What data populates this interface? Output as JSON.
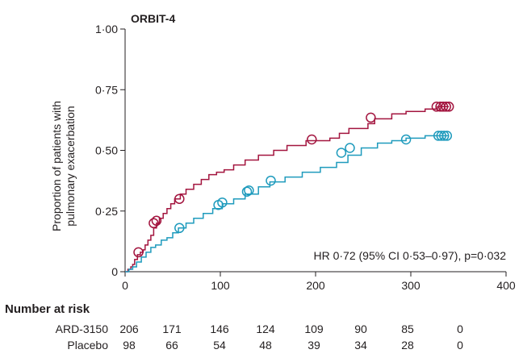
{
  "chart_data": {
    "type": "line",
    "subtype": "kaplan-meier",
    "title": "ORBIT-4",
    "ylabel_lines": [
      "Proportion of patients with",
      "pulmonary exacerbation"
    ],
    "xlabel": "",
    "xlim": [
      0,
      400
    ],
    "ylim": [
      0,
      1
    ],
    "x_ticks": [
      0,
      100,
      200,
      300,
      400
    ],
    "x_tick_labels": [
      "0",
      "100",
      "200",
      "300",
      "400"
    ],
    "y_ticks": [
      0,
      0.25,
      0.5,
      0.75,
      1.0
    ],
    "y_tick_labels": [
      "0",
      "0·25",
      "0·50",
      "0·75",
      "1·00"
    ],
    "grid": false,
    "annotation": "HR 0·72 (95% CI 0·53–0·97), p=0·032",
    "series": [
      {
        "name": "Placebo",
        "color": "#a3153f",
        "steps": [
          [
            0,
            0
          ],
          [
            3,
            0.01
          ],
          [
            6,
            0.02
          ],
          [
            8,
            0.03
          ],
          [
            10,
            0.05
          ],
          [
            13,
            0.07
          ],
          [
            16,
            0.08
          ],
          [
            19,
            0.09
          ],
          [
            21,
            0.11
          ],
          [
            24,
            0.13
          ],
          [
            27,
            0.15
          ],
          [
            30,
            0.18
          ],
          [
            33,
            0.2
          ],
          [
            36,
            0.22
          ],
          [
            40,
            0.24
          ],
          [
            44,
            0.26
          ],
          [
            48,
            0.28
          ],
          [
            52,
            0.3
          ],
          [
            58,
            0.32
          ],
          [
            64,
            0.34
          ],
          [
            72,
            0.36
          ],
          [
            80,
            0.38
          ],
          [
            88,
            0.4
          ],
          [
            96,
            0.41
          ],
          [
            104,
            0.42
          ],
          [
            114,
            0.44
          ],
          [
            126,
            0.46
          ],
          [
            140,
            0.48
          ],
          [
            156,
            0.5
          ],
          [
            170,
            0.52
          ],
          [
            190,
            0.54
          ],
          [
            215,
            0.55
          ],
          [
            225,
            0.57
          ],
          [
            235,
            0.59
          ],
          [
            255,
            0.61
          ],
          [
            262,
            0.63
          ],
          [
            280,
            0.65
          ],
          [
            295,
            0.66
          ],
          [
            315,
            0.67
          ],
          [
            328,
            0.68
          ],
          [
            340,
            0.68
          ]
        ],
        "censored": [
          [
            14,
            0.08
          ],
          [
            30,
            0.2
          ],
          [
            33,
            0.21
          ],
          [
            57,
            0.3
          ],
          [
            196,
            0.545
          ],
          [
            258,
            0.635
          ],
          [
            327,
            0.68
          ],
          [
            331,
            0.68
          ],
          [
            334,
            0.68
          ],
          [
            337,
            0.68
          ],
          [
            340,
            0.68
          ]
        ]
      },
      {
        "name": "ARD-3150",
        "color": "#1f9bbd",
        "steps": [
          [
            0,
            0
          ],
          [
            4,
            0.01
          ],
          [
            8,
            0.02
          ],
          [
            12,
            0.04
          ],
          [
            17,
            0.06
          ],
          [
            22,
            0.08
          ],
          [
            27,
            0.1
          ],
          [
            32,
            0.11
          ],
          [
            38,
            0.13
          ],
          [
            44,
            0.14
          ],
          [
            50,
            0.16
          ],
          [
            56,
            0.18
          ],
          [
            64,
            0.2
          ],
          [
            72,
            0.22
          ],
          [
            82,
            0.24
          ],
          [
            92,
            0.26
          ],
          [
            102,
            0.28
          ],
          [
            114,
            0.3
          ],
          [
            126,
            0.32
          ],
          [
            140,
            0.35
          ],
          [
            152,
            0.37
          ],
          [
            168,
            0.39
          ],
          [
            186,
            0.41
          ],
          [
            205,
            0.43
          ],
          [
            222,
            0.45
          ],
          [
            234,
            0.48
          ],
          [
            248,
            0.51
          ],
          [
            265,
            0.53
          ],
          [
            280,
            0.54
          ],
          [
            295,
            0.55
          ],
          [
            315,
            0.56
          ],
          [
            340,
            0.56
          ]
        ],
        "censored": [
          [
            57,
            0.18
          ],
          [
            98,
            0.275
          ],
          [
            102,
            0.285
          ],
          [
            128,
            0.33
          ],
          [
            130,
            0.335
          ],
          [
            153,
            0.375
          ],
          [
            227,
            0.49
          ],
          [
            236,
            0.51
          ],
          [
            295,
            0.545
          ],
          [
            329,
            0.56
          ],
          [
            332,
            0.56
          ],
          [
            335,
            0.56
          ],
          [
            338,
            0.56
          ]
        ]
      }
    ],
    "risk_table": {
      "title": "Number at risk",
      "rows": [
        {
          "label": "ARD-3150",
          "values": [
            "206",
            "171",
            "146",
            "124",
            "109",
            "90",
            "85",
            "0"
          ]
        },
        {
          "label": "Placebo",
          "values": [
            "98",
            "66",
            "54",
            "48",
            "39",
            "34",
            "28",
            "0"
          ]
        }
      ],
      "times": [
        0,
        50,
        100,
        150,
        200,
        250,
        300,
        350
      ]
    }
  }
}
